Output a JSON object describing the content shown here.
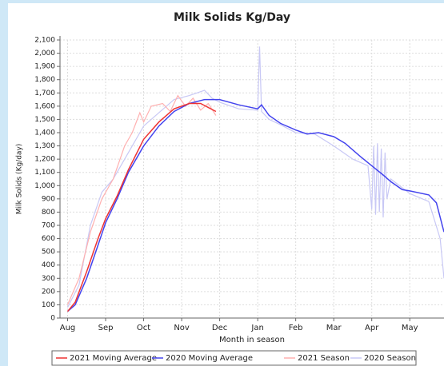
{
  "chart_data": {
    "type": "line",
    "title": "Milk Solids Kg/Day",
    "x_label": "Month in season",
    "y_label": "Milk Solids (Kg/day)",
    "xlim": [
      -0.2,
      9.9
    ],
    "ylim": [
      0,
      2100
    ],
    "xticks": [
      {
        "value": 0,
        "label": "Aug"
      },
      {
        "value": 1,
        "label": "Sep"
      },
      {
        "value": 2,
        "label": "Oct"
      },
      {
        "value": 3,
        "label": "Nov"
      },
      {
        "value": 4,
        "label": "Dec"
      },
      {
        "value": 5,
        "label": "Jan"
      },
      {
        "value": 6,
        "label": "Feb"
      },
      {
        "value": 7,
        "label": "Mar"
      },
      {
        "value": 8,
        "label": "Apr"
      },
      {
        "value": 9,
        "label": "May"
      }
    ],
    "yticks": [
      0,
      100,
      200,
      300,
      400,
      500,
      600,
      700,
      800,
      900,
      {
        "value": 1000,
        "label": "1,000"
      },
      {
        "value": 1100,
        "label": "1,100"
      },
      {
        "value": 1200,
        "label": "1,200"
      },
      {
        "value": 1300,
        "label": "1,300"
      },
      {
        "value": 1400,
        "label": "1,400"
      },
      {
        "value": 1500,
        "label": "1,500"
      },
      {
        "value": 1600,
        "label": "1,600"
      },
      {
        "value": 1700,
        "label": "1,700"
      },
      {
        "value": 1800,
        "label": "1,800"
      },
      {
        "value": 1900,
        "label": "1,900"
      },
      {
        "value": 2000,
        "label": "2,000"
      },
      {
        "value": 2100,
        "label": "2,100"
      }
    ],
    "grid": true,
    "series": [
      {
        "name": "2021 Moving Average",
        "color": "#ee3333",
        "x": [
          0.0,
          0.2,
          0.5,
          0.8,
          1.0,
          1.3,
          1.6,
          2.0,
          2.4,
          2.8,
          3.2,
          3.5,
          3.7,
          3.9
        ],
        "values": [
          50,
          120,
          350,
          600,
          750,
          920,
          1120,
          1350,
          1480,
          1580,
          1620,
          1620,
          1590,
          1560
        ]
      },
      {
        "name": "2020 Moving Average",
        "color": "#4444ee",
        "x": [
          0.0,
          0.2,
          0.5,
          0.8,
          1.0,
          1.3,
          1.6,
          2.0,
          2.4,
          2.8,
          3.2,
          3.6,
          4.0,
          4.5,
          5.0,
          5.1,
          5.3,
          5.6,
          6.0,
          6.3,
          6.6,
          7.0,
          7.3,
          7.7,
          8.0,
          8.3,
          8.5,
          8.8,
          9.0,
          9.5,
          9.7,
          9.9
        ],
        "values": [
          50,
          100,
          300,
          550,
          720,
          900,
          1100,
          1300,
          1450,
          1560,
          1620,
          1650,
          1650,
          1610,
          1580,
          1610,
          1530,
          1470,
          1420,
          1390,
          1400,
          1370,
          1320,
          1220,
          1150,
          1080,
          1030,
          970,
          960,
          930,
          870,
          650
        ]
      },
      {
        "name": "2021 Season",
        "color": "#ffb0b0",
        "x": [
          0.0,
          0.3,
          0.6,
          0.9,
          1.2,
          1.5,
          1.7,
          1.9,
          2.0,
          2.2,
          2.5,
          2.7,
          2.9,
          3.1,
          3.3,
          3.5,
          3.7,
          3.9
        ],
        "values": [
          100,
          300,
          650,
          900,
          1050,
          1300,
          1400,
          1550,
          1480,
          1600,
          1620,
          1560,
          1680,
          1600,
          1660,
          1570,
          1620,
          1530
        ]
      },
      {
        "name": "2020 Season",
        "color": "#c8c8f5",
        "x": [
          0.0,
          0.3,
          0.6,
          0.9,
          1.2,
          1.6,
          2.0,
          2.4,
          2.8,
          3.2,
          3.6,
          3.8,
          4.0,
          4.5,
          5.0,
          5.05,
          5.1,
          5.3,
          5.6,
          6.0,
          6.5,
          7.0,
          7.5,
          7.9,
          8.0,
          8.05,
          8.1,
          8.15,
          8.2,
          8.25,
          8.3,
          8.35,
          8.4,
          8.5,
          9.0,
          9.5,
          9.8,
          9.9
        ],
        "values": [
          80,
          250,
          700,
          950,
          1050,
          1250,
          1450,
          1550,
          1650,
          1680,
          1720,
          1660,
          1630,
          1580,
          1570,
          2050,
          1560,
          1500,
          1460,
          1400,
          1390,
          1300,
          1200,
          1150,
          820,
          1300,
          780,
          1320,
          800,
          1280,
          760,
          1250,
          900,
          1050,
          940,
          880,
          600,
          300
        ]
      }
    ]
  }
}
